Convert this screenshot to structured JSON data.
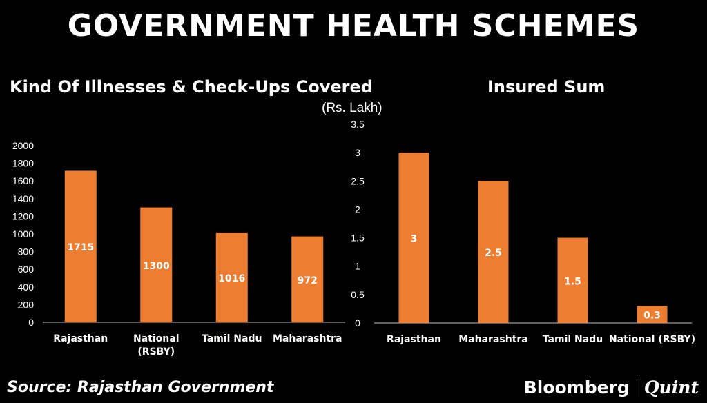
{
  "title": "GOVERNMENT HEALTH SCHEMES",
  "footer": {
    "source": "Source: Rajasthan Government",
    "brand_left": "Bloomberg",
    "brand_right": "Quint"
  },
  "colors": {
    "bar": "#ED7D31",
    "axis": "#7F7F7F",
    "background": "#000000",
    "text": "#FFFFFF"
  },
  "chart_data": [
    {
      "type": "bar",
      "title": "Kind Of Illnesses & Check-Ups Covered",
      "categories": [
        "Rajasthan",
        "National\n(RSBY)",
        "Tamil Nadu",
        "Maharashtra"
      ],
      "values": [
        1715,
        1300,
        1016,
        972
      ],
      "ylim": [
        0,
        2000
      ],
      "yticks": [
        0,
        200,
        400,
        600,
        800,
        1000,
        1200,
        1400,
        1600,
        1800,
        2000
      ],
      "ylabel": "",
      "xlabel": "",
      "grid": false,
      "data_labels": true
    },
    {
      "type": "bar",
      "title": "Insured Sum",
      "unit_label": "(Rs. Lakh)",
      "categories": [
        "Rajasthan",
        "Maharashtra",
        "Tamil Nadu",
        "National (RSBY)"
      ],
      "values": [
        3,
        2.5,
        1.5,
        0.3
      ],
      "ylim": [
        0,
        3.5
      ],
      "yticks": [
        0,
        0.5,
        1,
        1.5,
        2,
        2.5,
        3,
        3.5
      ],
      "ylabel": "",
      "xlabel": "",
      "grid": false,
      "data_labels": true
    }
  ]
}
